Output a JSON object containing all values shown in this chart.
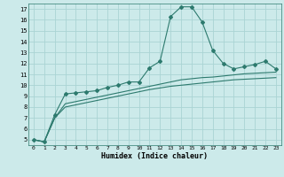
{
  "xlabel": "Humidex (Indice chaleur)",
  "ylabel": "",
  "bg_color": "#cceaea",
  "grid_color": "#aad4d4",
  "line_color": "#2d7a6e",
  "xlim": [
    -0.5,
    23.5
  ],
  "ylim": [
    4.5,
    17.5
  ],
  "yticks": [
    5,
    6,
    7,
    8,
    9,
    10,
    11,
    12,
    13,
    14,
    15,
    16,
    17
  ],
  "xticks": [
    0,
    1,
    2,
    3,
    4,
    5,
    6,
    7,
    8,
    9,
    10,
    11,
    12,
    13,
    14,
    15,
    16,
    17,
    18,
    19,
    20,
    21,
    22,
    23
  ],
  "series1_x": [
    0,
    1,
    2,
    3,
    4,
    5,
    6,
    7,
    8,
    9,
    10,
    11,
    12,
    13,
    14,
    15,
    16,
    17,
    18,
    19,
    20,
    21,
    22,
    23
  ],
  "series1_y": [
    5.0,
    4.8,
    7.3,
    9.2,
    9.3,
    9.4,
    9.5,
    9.8,
    10.0,
    10.3,
    10.3,
    11.6,
    12.2,
    16.3,
    17.2,
    17.2,
    15.8,
    13.2,
    12.0,
    11.5,
    11.7,
    11.9,
    12.2,
    11.5
  ],
  "series2_x": [
    0,
    1,
    2,
    3,
    4,
    5,
    6,
    7,
    8,
    9,
    10,
    11,
    12,
    13,
    14,
    15,
    16,
    17,
    18,
    19,
    20,
    21,
    22,
    23
  ],
  "series2_y": [
    5.0,
    4.8,
    7.0,
    8.3,
    8.5,
    8.7,
    8.9,
    9.1,
    9.3,
    9.5,
    9.7,
    9.9,
    10.1,
    10.3,
    10.5,
    10.6,
    10.7,
    10.75,
    10.85,
    10.95,
    11.05,
    11.1,
    11.15,
    11.2
  ],
  "series3_x": [
    0,
    1,
    2,
    3,
    4,
    5,
    6,
    7,
    8,
    9,
    10,
    11,
    12,
    13,
    14,
    15,
    16,
    17,
    18,
    19,
    20,
    21,
    22,
    23
  ],
  "series3_y": [
    5.0,
    4.8,
    7.0,
    8.0,
    8.2,
    8.4,
    8.6,
    8.8,
    9.0,
    9.2,
    9.4,
    9.6,
    9.75,
    9.9,
    10.0,
    10.1,
    10.2,
    10.3,
    10.4,
    10.5,
    10.55,
    10.6,
    10.65,
    10.7
  ]
}
